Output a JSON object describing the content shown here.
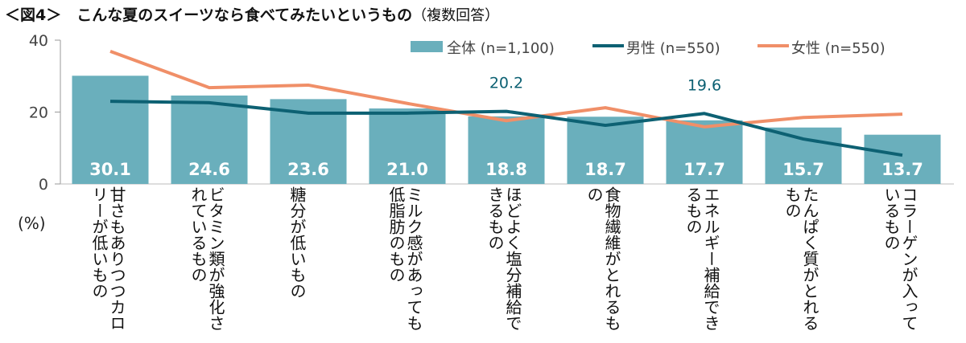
{
  "title": "＜図4＞　こんな夏のスイーツなら食べてみたいというもの",
  "subtitle": "（複数回答）",
  "chart_data": {
    "type": "bar",
    "ylabel": "(%)",
    "ylim": [
      0,
      40
    ],
    "yticks": [
      0,
      20,
      40
    ],
    "grid": false,
    "legend_position": "top-right",
    "categories": [
      "甘さもありつつカロリーが低いもの",
      "ビタミン類が強化されているもの",
      "糖分が低いもの",
      "ミルク感があっても低脂肪のもの",
      "ほどよく塩分補給できるもの",
      "食物繊維がとれるもの",
      "エネルギー補給できるもの",
      "たんぱく質がとれるもの",
      "コラーゲンが入っているもの"
    ],
    "series": [
      {
        "name": "全体 (n=1,100)",
        "type": "bar",
        "color": "#6aafbc",
        "values": [
          30.1,
          24.6,
          23.6,
          21.0,
          18.8,
          18.7,
          17.7,
          15.7,
          13.7
        ],
        "labels": [
          "30.1",
          "24.6",
          "23.6",
          "21.0",
          "18.8",
          "18.7",
          "17.7",
          "15.7",
          "13.7"
        ]
      },
      {
        "name": "男性 (n=550)",
        "type": "line",
        "color": "#0d6173",
        "values": [
          23.0,
          22.6,
          19.7,
          19.7,
          20.2,
          16.3,
          19.6,
          12.5,
          8.0
        ],
        "labels": {
          "4": "20.2",
          "6": "19.6"
        }
      },
      {
        "name": "女性 (n=550)",
        "type": "line",
        "color": "#f08f68",
        "values": [
          36.9,
          26.8,
          27.5,
          22.4,
          17.6,
          21.2,
          15.9,
          18.5,
          19.4
        ]
      }
    ]
  }
}
